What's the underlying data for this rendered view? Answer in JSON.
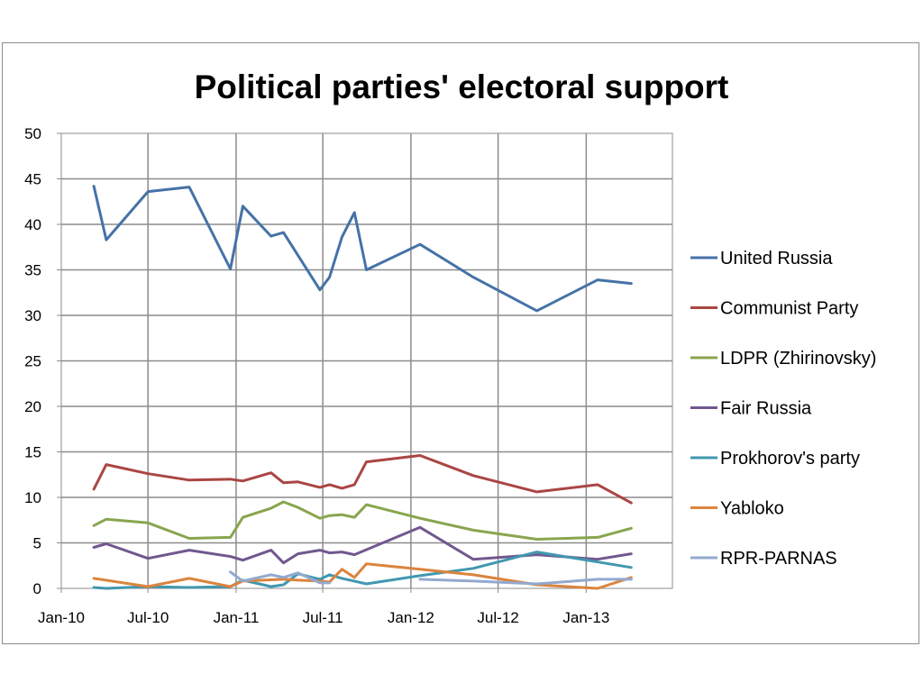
{
  "chart_data": {
    "type": "line",
    "title": "Political parties' electoral support",
    "xlabel": "",
    "ylabel": "",
    "ylim": [
      0,
      50
    ],
    "y_ticks": [
      "0",
      "5",
      "10",
      "15",
      "20",
      "25",
      "30",
      "35",
      "40",
      "45",
      "50"
    ],
    "x_ticks": [
      "Jan-10",
      "Jul-10",
      "Jan-11",
      "Jul-11",
      "Jan-12",
      "Jul-12",
      "Jan-13"
    ],
    "xlim": [
      "2010-01-01",
      "2013-06-30"
    ],
    "grid": true,
    "legend_position": "right",
    "series": [
      {
        "name": "United Russia",
        "color": "#4572a7",
        "points": [
          [
            "2010-03-10",
            44.2
          ],
          [
            "2010-04-05",
            38.3
          ],
          [
            "2010-07-01",
            43.6
          ],
          [
            "2010-09-25",
            44.1
          ],
          [
            "2010-12-20",
            35.1
          ],
          [
            "2011-01-15",
            42.0
          ],
          [
            "2011-03-15",
            38.7
          ],
          [
            "2011-04-10",
            39.1
          ],
          [
            "2011-06-25",
            32.8
          ],
          [
            "2011-07-15",
            34.2
          ],
          [
            "2011-08-10",
            38.6
          ],
          [
            "2011-09-05",
            41.3
          ],
          [
            "2011-09-30",
            35.0
          ],
          [
            "2012-01-20",
            37.8
          ],
          [
            "2012-05-10",
            34.2
          ],
          [
            "2012-09-20",
            30.5
          ],
          [
            "2013-01-25",
            33.9
          ],
          [
            "2013-04-05",
            33.5
          ]
        ]
      },
      {
        "name": "Communist Party",
        "color": "#aa4643",
        "points": [
          [
            "2010-03-10",
            10.9
          ],
          [
            "2010-04-05",
            13.6
          ],
          [
            "2010-07-01",
            12.6
          ],
          [
            "2010-09-25",
            11.9
          ],
          [
            "2010-12-20",
            12.0
          ],
          [
            "2011-01-15",
            11.8
          ],
          [
            "2011-03-15",
            12.7
          ],
          [
            "2011-04-10",
            11.6
          ],
          [
            "2011-05-10",
            11.7
          ],
          [
            "2011-06-25",
            11.1
          ],
          [
            "2011-07-15",
            11.4
          ],
          [
            "2011-08-10",
            11.0
          ],
          [
            "2011-09-05",
            11.4
          ],
          [
            "2011-09-30",
            13.9
          ],
          [
            "2012-01-20",
            14.6
          ],
          [
            "2012-05-10",
            12.4
          ],
          [
            "2012-09-20",
            10.6
          ],
          [
            "2013-01-25",
            11.4
          ],
          [
            "2013-04-05",
            9.4
          ]
        ]
      },
      {
        "name": "LDPR (Zhirinovsky)",
        "color": "#89a54e",
        "points": [
          [
            "2010-03-10",
            6.9
          ],
          [
            "2010-04-05",
            7.6
          ],
          [
            "2010-07-01",
            7.2
          ],
          [
            "2010-09-25",
            5.5
          ],
          [
            "2010-12-20",
            5.6
          ],
          [
            "2011-01-15",
            7.8
          ],
          [
            "2011-03-15",
            8.8
          ],
          [
            "2011-04-10",
            9.5
          ],
          [
            "2011-05-10",
            8.9
          ],
          [
            "2011-06-25",
            7.7
          ],
          [
            "2011-07-15",
            8.0
          ],
          [
            "2011-08-10",
            8.1
          ],
          [
            "2011-09-05",
            7.8
          ],
          [
            "2011-09-30",
            9.2
          ],
          [
            "2012-01-20",
            7.7
          ],
          [
            "2012-05-10",
            6.4
          ],
          [
            "2012-09-20",
            5.4
          ],
          [
            "2013-01-25",
            5.6
          ],
          [
            "2013-04-05",
            6.6
          ]
        ]
      },
      {
        "name": "Fair Russia",
        "color": "#71588f",
        "points": [
          [
            "2010-03-10",
            4.5
          ],
          [
            "2010-04-05",
            4.9
          ],
          [
            "2010-07-01",
            3.3
          ],
          [
            "2010-09-25",
            4.2
          ],
          [
            "2010-12-20",
            3.5
          ],
          [
            "2011-01-15",
            3.1
          ],
          [
            "2011-03-15",
            4.2
          ],
          [
            "2011-04-10",
            2.8
          ],
          [
            "2011-05-10",
            3.8
          ],
          [
            "2011-06-25",
            4.2
          ],
          [
            "2011-07-15",
            3.9
          ],
          [
            "2011-08-10",
            4.0
          ],
          [
            "2011-09-05",
            3.7
          ],
          [
            "2012-01-20",
            6.7
          ],
          [
            "2012-05-10",
            3.2
          ],
          [
            "2012-09-20",
            3.7
          ],
          [
            "2013-01-25",
            3.2
          ],
          [
            "2013-04-05",
            3.8
          ]
        ]
      },
      {
        "name": "Prokhorov's party",
        "color": "#4198af",
        "points": [
          [
            "2010-03-10",
            0.1
          ],
          [
            "2010-04-05",
            0.0
          ],
          [
            "2010-07-01",
            0.2
          ],
          [
            "2010-09-25",
            0.1
          ],
          [
            "2010-12-20",
            0.2
          ],
          [
            "2011-01-15",
            0.9
          ],
          [
            "2011-03-15",
            0.2
          ],
          [
            "2011-04-10",
            0.4
          ],
          [
            "2011-05-10",
            1.6
          ],
          [
            "2011-06-25",
            1.0
          ],
          [
            "2011-07-15",
            1.5
          ],
          [
            "2011-08-10",
            1.1
          ],
          [
            "2011-09-30",
            0.5
          ],
          [
            "2012-01-20",
            1.4
          ],
          [
            "2012-05-10",
            2.2
          ],
          [
            "2012-09-20",
            4.0
          ],
          [
            "2013-01-25",
            2.9
          ],
          [
            "2013-04-05",
            2.3
          ]
        ]
      },
      {
        "name": "Yabloko",
        "color": "#db843d",
        "points": [
          [
            "2010-03-10",
            1.1
          ],
          [
            "2010-07-01",
            0.2
          ],
          [
            "2010-09-25",
            1.1
          ],
          [
            "2010-12-20",
            0.2
          ],
          [
            "2011-01-15",
            0.8
          ],
          [
            "2011-04-10",
            1.0
          ],
          [
            "2011-05-10",
            0.9
          ],
          [
            "2011-06-25",
            0.8
          ],
          [
            "2011-07-15",
            0.7
          ],
          [
            "2011-08-10",
            2.1
          ],
          [
            "2011-09-05",
            1.2
          ],
          [
            "2011-09-30",
            2.7
          ],
          [
            "2012-01-20",
            2.1
          ],
          [
            "2012-05-10",
            1.5
          ],
          [
            "2012-09-20",
            0.4
          ],
          [
            "2013-01-25",
            0.0
          ],
          [
            "2013-04-05",
            1.2
          ]
        ]
      },
      {
        "name": "RPR-PARNAS",
        "color": "#93a9cf",
        "points": [
          [
            "2010-12-20",
            1.8
          ],
          [
            "2011-01-15",
            0.8
          ],
          [
            "2011-03-15",
            1.5
          ],
          [
            "2011-04-10",
            1.2
          ],
          [
            "2011-05-10",
            1.7
          ],
          [
            "2011-06-25",
            0.6
          ],
          [
            "2011-07-15",
            0.6
          ],
          [
            "2011-08-10",
            null
          ],
          [
            "2012-01-20",
            1.0
          ],
          [
            "2012-05-10",
            0.8
          ],
          [
            "2012-09-20",
            0.5
          ],
          [
            "2013-01-25",
            1.0
          ],
          [
            "2013-04-05",
            1.0
          ]
        ]
      }
    ]
  }
}
